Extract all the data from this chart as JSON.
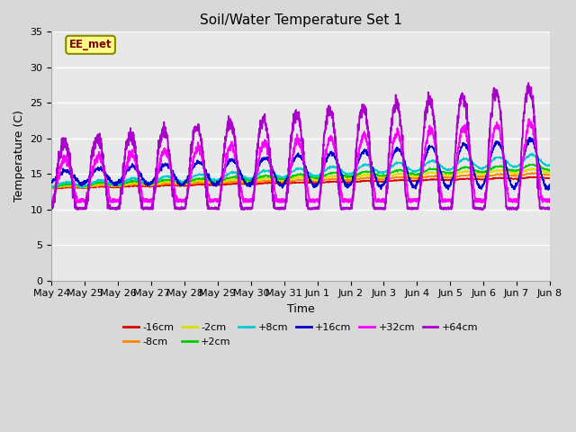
{
  "title": "Soil/Water Temperature Set 1",
  "xlabel": "Time",
  "ylabel": "Temperature (C)",
  "ylim": [
    0,
    35
  ],
  "yticks": [
    0,
    5,
    10,
    15,
    20,
    25,
    30,
    35
  ],
  "annotation_text": "EE_met",
  "legend_entries": [
    "-16cm",
    "-8cm",
    "-2cm",
    "+2cm",
    "+8cm",
    "+16cm",
    "+32cm",
    "+64cm"
  ],
  "line_colors": [
    "#dd0000",
    "#ff8800",
    "#dddd00",
    "#00cc00",
    "#00cccc",
    "#0000cc",
    "#ff00ff",
    "#aa00cc"
  ],
  "tick_labels": [
    "May 24",
    "May 25",
    "May 26",
    "May 27",
    "May 28",
    "May 29",
    "May 30",
    "May 31",
    "Jun 1",
    "Jun 2",
    "Jun 3",
    "Jun 4",
    "Jun 5",
    "Jun 6",
    "Jun 7",
    "Jun 8"
  ],
  "fig_bg": "#d8d8d8",
  "plot_bg": "#e8e8e8",
  "n_days": 15,
  "pts_per_day": 144
}
